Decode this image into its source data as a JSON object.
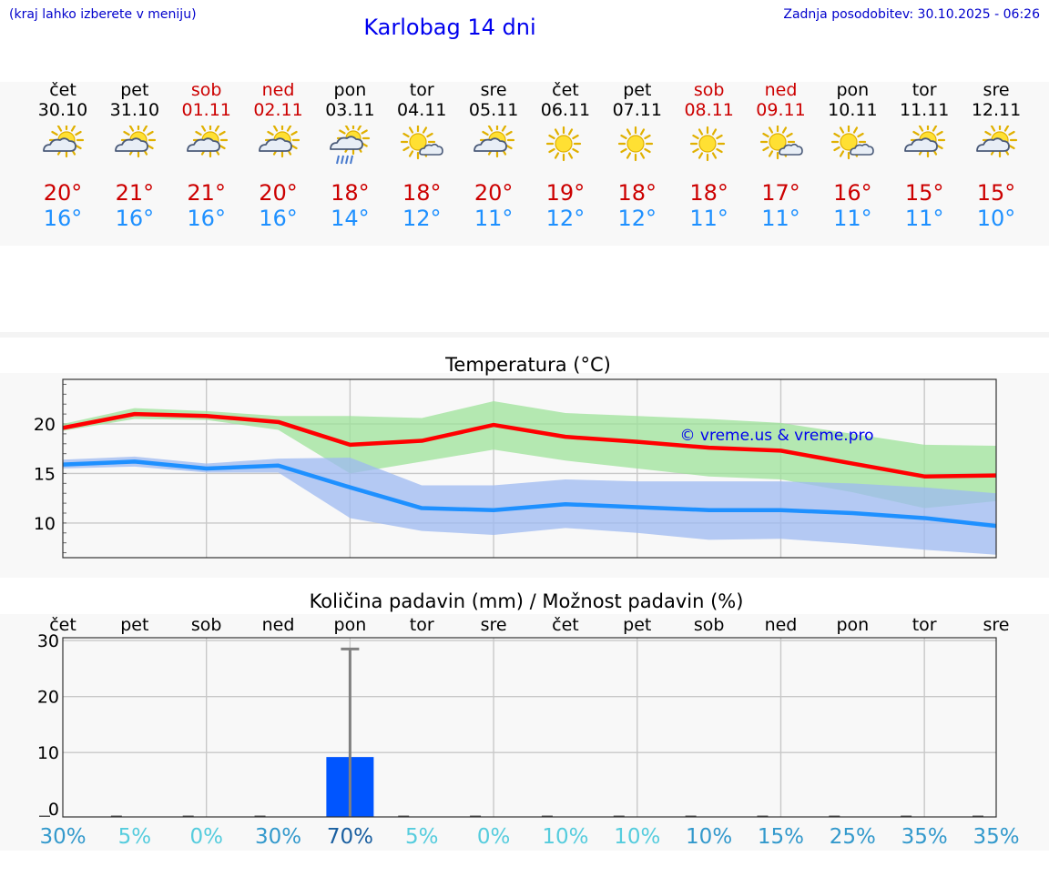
{
  "header": {
    "left_note": "(kraj lahko izberete v meniju)",
    "title": "Karlobag 14 dni",
    "updated": "Zadnja posodobitev: 30.10.2025 - 06:26"
  },
  "colors": {
    "weekday": "#000000",
    "weekend": "#cc0000",
    "tmax": "#cc0000",
    "tmin": "#1e90ff"
  },
  "days": [
    {
      "name": "čet",
      "date": "30.10",
      "weekend": false,
      "icon": "sun-cloud-icon",
      "tmax": "20°",
      "tmin": "16°"
    },
    {
      "name": "pet",
      "date": "31.10",
      "weekend": false,
      "icon": "sun-cloud-icon",
      "tmax": "21°",
      "tmin": "16°"
    },
    {
      "name": "sob",
      "date": "01.11",
      "weekend": true,
      "icon": "sun-cloud-icon",
      "tmax": "21°",
      "tmin": "16°"
    },
    {
      "name": "ned",
      "date": "02.11",
      "weekend": true,
      "icon": "sun-cloud-icon",
      "tmax": "20°",
      "tmin": "16°"
    },
    {
      "name": "pon",
      "date": "03.11",
      "weekend": false,
      "icon": "sun-cloud-rain-icon",
      "tmax": "18°",
      "tmin": "14°"
    },
    {
      "name": "tor",
      "date": "04.11",
      "weekend": false,
      "icon": "sun-small-cloud-icon",
      "tmax": "18°",
      "tmin": "12°"
    },
    {
      "name": "sre",
      "date": "05.11",
      "weekend": false,
      "icon": "sun-cloud-icon",
      "tmax": "20°",
      "tmin": "11°"
    },
    {
      "name": "čet",
      "date": "06.11",
      "weekend": false,
      "icon": "sun-icon",
      "tmax": "19°",
      "tmin": "12°"
    },
    {
      "name": "pet",
      "date": "07.11",
      "weekend": false,
      "icon": "sun-icon",
      "tmax": "18°",
      "tmin": "12°"
    },
    {
      "name": "sob",
      "date": "08.11",
      "weekend": true,
      "icon": "sun-icon",
      "tmax": "18°",
      "tmin": "11°"
    },
    {
      "name": "ned",
      "date": "09.11",
      "weekend": true,
      "icon": "sun-small-cloud-icon",
      "tmax": "17°",
      "tmin": "11°"
    },
    {
      "name": "pon",
      "date": "10.11",
      "weekend": false,
      "icon": "sun-small-cloud-icon",
      "tmax": "16°",
      "tmin": "11°"
    },
    {
      "name": "tor",
      "date": "11.11",
      "weekend": false,
      "icon": "sun-cloud-icon",
      "tmax": "15°",
      "tmin": "11°"
    },
    {
      "name": "sre",
      "date": "12.11",
      "weekend": false,
      "icon": "sun-cloud-icon",
      "tmax": "15°",
      "tmin": "10°"
    }
  ],
  "chart_data": [
    {
      "type": "line",
      "title": "Temperatura (°C)",
      "watermark": "© vreme.us & vreme.pro",
      "ylim": [
        6.5,
        24.5
      ],
      "yticks": [
        10,
        15,
        20
      ],
      "x": [
        1,
        2,
        3,
        4,
        5,
        6,
        7,
        8,
        9,
        10,
        11,
        12,
        13,
        14
      ],
      "series": [
        {
          "name": "max",
          "color": "#ff0000",
          "values": [
            19.6,
            21.0,
            20.8,
            20.2,
            17.9,
            18.3,
            19.9,
            18.7,
            18.2,
            17.6,
            17.3,
            16.0,
            14.7,
            14.8
          ],
          "band_low": [
            19.3,
            20.5,
            20.4,
            19.4,
            15.0,
            16.2,
            17.4,
            16.3,
            15.5,
            14.7,
            14.4,
            13.1,
            11.5,
            12.2
          ],
          "band_high": [
            20.0,
            21.6,
            21.3,
            20.8,
            20.8,
            20.6,
            22.3,
            21.1,
            20.8,
            20.5,
            20.1,
            19.0,
            17.9,
            17.8
          ]
        },
        {
          "name": "min",
          "color": "#1e90ff",
          "values": [
            15.9,
            16.2,
            15.5,
            15.8,
            13.6,
            11.5,
            11.3,
            11.9,
            11.6,
            11.3,
            11.3,
            11.0,
            10.5,
            9.7
          ],
          "band_low": [
            15.5,
            15.7,
            15.1,
            15.1,
            10.5,
            9.2,
            8.8,
            9.5,
            9.0,
            8.3,
            8.4,
            7.9,
            7.3,
            6.8
          ],
          "band_high": [
            16.4,
            16.7,
            16.0,
            16.5,
            16.6,
            13.8,
            13.8,
            14.4,
            14.2,
            14.2,
            14.2,
            14.0,
            13.6,
            13.0
          ]
        }
      ]
    },
    {
      "type": "bar",
      "title": "Količina padavin (mm) / Možnost padavin (%)",
      "categories": [
        "čet",
        "pet",
        "sob",
        "ned",
        "pon",
        "tor",
        "sre",
        "čet",
        "pet",
        "sob",
        "ned",
        "pon",
        "tor",
        "sre"
      ],
      "ylim": [
        -1.5,
        30.5
      ],
      "yticks": [
        0,
        10,
        20,
        30
      ],
      "series": [
        {
          "name": "padavine",
          "color": "#0055ff",
          "values": [
            0,
            0,
            0,
            0,
            9.2,
            0,
            0,
            0,
            0,
            0,
            0,
            0,
            0,
            0
          ],
          "error_high": [
            0,
            0,
            0,
            0,
            28.5,
            0,
            0,
            0,
            0,
            0,
            0,
            0,
            0,
            0
          ]
        }
      ],
      "probabilities": [
        "30%",
        "5%",
        "0%",
        "30%",
        "70%",
        "5%",
        "0%",
        "10%",
        "10%",
        "10%",
        "15%",
        "25%",
        "35%",
        "35%"
      ],
      "probability_colors": [
        "#3399cc",
        "#55ccdd",
        "#55ccdd",
        "#3399cc",
        "#1a5fa0",
        "#55ccdd",
        "#55ccdd",
        "#55ccdd",
        "#55ccdd",
        "#3399cc",
        "#3399cc",
        "#3399cc",
        "#3399cc",
        "#3399cc"
      ]
    }
  ]
}
